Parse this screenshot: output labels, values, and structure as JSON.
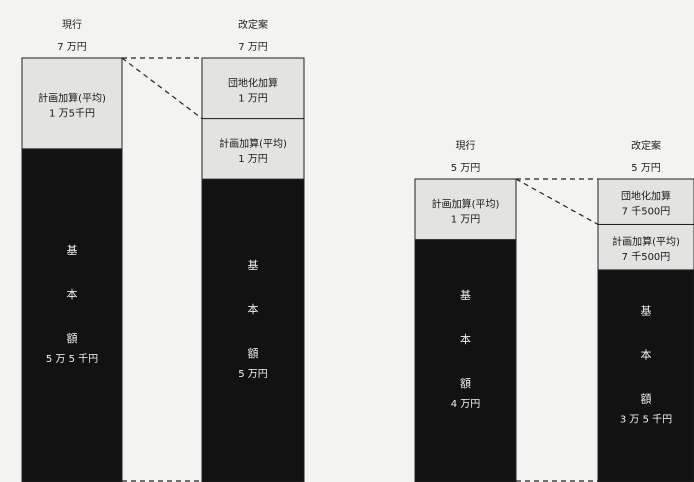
{
  "chart_data": [
    {
      "type": "stacked-bar",
      "unit": "円",
      "categories": [
        "現行",
        "改定案"
      ],
      "totals": [
        "7 万円",
        "7 万円"
      ],
      "segments": [
        {
          "category": "現行",
          "parts": [
            {
              "label": "基\n本\n額",
              "value_label": "5 万 5 千円",
              "value": 55000,
              "fill": "#121212"
            },
            {
              "label": "計画加算(平均)",
              "value_label": "1 万5千円",
              "value": 15000,
              "fill": "#e3e3e1"
            }
          ]
        },
        {
          "category": "改定案",
          "parts": [
            {
              "label": "基\n本\n額",
              "value_label": "5 万円",
              "value": 50000,
              "fill": "#121212"
            },
            {
              "label": "計画加算(平均)",
              "value_label": "1 万円",
              "value": 10000,
              "fill": "#e3e3e1"
            },
            {
              "label": "団地化加算",
              "value_label": "1 万円",
              "value": 10000,
              "fill": "#e3e3e1"
            }
          ]
        }
      ]
    },
    {
      "type": "stacked-bar",
      "unit": "円",
      "categories": [
        "現行",
        "改定案"
      ],
      "totals": [
        "5 万円",
        "5 万円"
      ],
      "segments": [
        {
          "category": "現行",
          "parts": [
            {
              "label": "基\n本\n額",
              "value_label": "4 万円",
              "value": 40000,
              "fill": "#121212"
            },
            {
              "label": "計画加算(平均)",
              "value_label": "1 万円",
              "value": 10000,
              "fill": "#e3e3e1"
            }
          ]
        },
        {
          "category": "改定案",
          "parts": [
            {
              "label": "基\n本\n額",
              "value_label": "3 万 5 千円",
              "value": 35000,
              "fill": "#121212"
            },
            {
              "label": "計画加算(平均)",
              "value_label": "7 千500円",
              "value": 7500,
              "fill": "#e3e3e1"
            },
            {
              "label": "団地化加算",
              "value_label": "7 千500円",
              "value": 7500,
              "fill": "#e3e3e1"
            }
          ]
        }
      ]
    }
  ],
  "colors": {
    "dark": "#121212",
    "light": "#e3e3e1",
    "line": "#222222",
    "background": "#f3f3f1"
  }
}
